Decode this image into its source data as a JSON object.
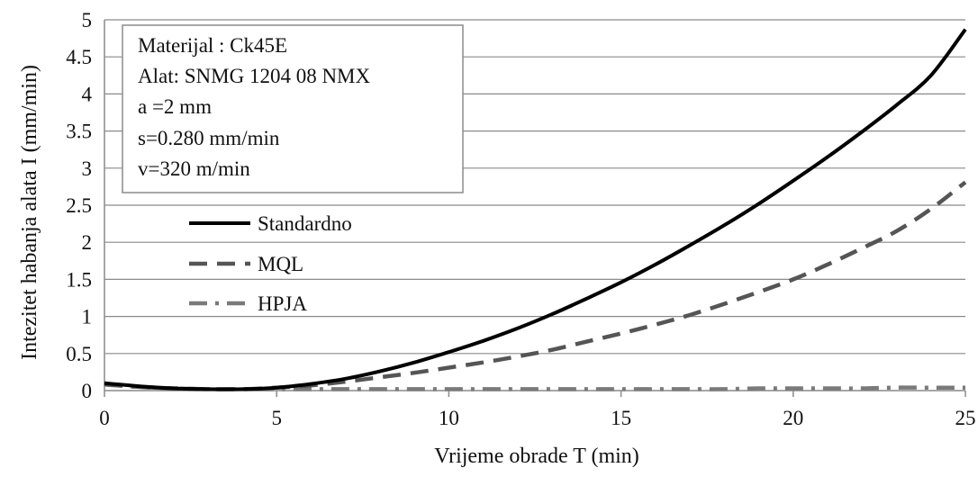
{
  "chart_data": {
    "type": "line",
    "xlabel": "Vrijeme obrade T (min)",
    "ylabel": "Intezitet habanja alata I (mm/min)",
    "xlim": [
      0,
      25
    ],
    "ylim": [
      0,
      5
    ],
    "x_ticks": [
      "0",
      "5",
      "10",
      "15",
      "20",
      "25"
    ],
    "y_ticks": [
      "0",
      "0.5",
      "1",
      "1.5",
      "2",
      "2.5",
      "3",
      "3.5",
      "4",
      "4.5",
      "5"
    ],
    "grid": "horizontal",
    "legend_position": "upper-left",
    "info_box": [
      "Materijal : Ck45E",
      "Alat: SNMG 1204 08 NMX",
      "a =2 mm",
      "s=0.280 mm/min",
      "v=320 m/min"
    ],
    "series": [
      {
        "name": "Standardno",
        "color": "#000000",
        "style": "solid",
        "x": [
          0,
          1,
          2,
          3,
          4,
          5,
          6,
          7,
          8,
          9,
          10,
          11,
          12,
          13,
          14,
          15,
          16,
          17,
          18,
          19,
          20,
          21,
          22,
          23,
          24,
          25
        ],
        "values": [
          0.1,
          0.06,
          0.03,
          0.02,
          0.02,
          0.04,
          0.09,
          0.16,
          0.26,
          0.38,
          0.52,
          0.67,
          0.84,
          1.03,
          1.24,
          1.46,
          1.7,
          1.96,
          2.23,
          2.52,
          2.83,
          3.15,
          3.49,
          3.85,
          4.25,
          4.87
        ]
      },
      {
        "name": "MQL",
        "color": "#555555",
        "style": "dashed",
        "x": [
          0,
          1,
          2,
          3,
          4,
          5,
          6,
          7,
          8,
          9,
          10,
          11,
          12,
          13,
          14,
          15,
          16,
          17,
          18,
          19,
          20,
          21,
          22,
          23,
          24,
          25
        ],
        "values": [
          0.09,
          0.05,
          0.03,
          0.02,
          0.02,
          0.04,
          0.07,
          0.12,
          0.18,
          0.24,
          0.31,
          0.38,
          0.46,
          0.55,
          0.66,
          0.77,
          0.89,
          1.02,
          1.17,
          1.33,
          1.5,
          1.7,
          1.92,
          2.15,
          2.45,
          2.81
        ]
      },
      {
        "name": "HPJA",
        "color": "#7a7a7a",
        "style": "dash-dot",
        "x": [
          0,
          1,
          2,
          3,
          4,
          5,
          6,
          7,
          8,
          9,
          10,
          11,
          12,
          13,
          14,
          15,
          16,
          17,
          18,
          19,
          20,
          21,
          22,
          23,
          24,
          25
        ],
        "values": [
          0.08,
          0.05,
          0.03,
          0.02,
          0.02,
          0.02,
          0.02,
          0.02,
          0.02,
          0.02,
          0.02,
          0.02,
          0.02,
          0.02,
          0.02,
          0.02,
          0.02,
          0.02,
          0.02,
          0.03,
          0.03,
          0.03,
          0.03,
          0.04,
          0.04,
          0.04
        ]
      }
    ]
  }
}
